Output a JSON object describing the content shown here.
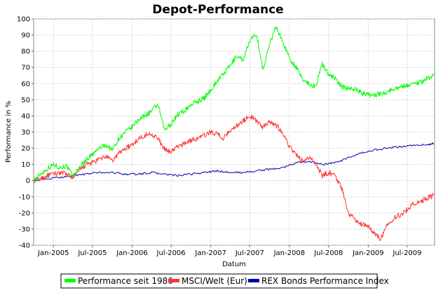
{
  "chart_data": {
    "type": "line",
    "title": "Depot-Performance",
    "xlabel": "Datum",
    "ylabel": "Performance in %",
    "ylim": [
      -40,
      100
    ],
    "yticks": [
      -40,
      -30,
      -20,
      -10,
      0,
      10,
      20,
      30,
      40,
      50,
      60,
      70,
      80,
      90,
      100
    ],
    "xlim": [
      "2004-10-01",
      "2009-11-05"
    ],
    "xticks": [
      {
        "label": "Jan-2005",
        "date": "2005-01-01"
      },
      {
        "label": "Jul-2005",
        "date": "2005-07-01"
      },
      {
        "label": "Jan-2006",
        "date": "2006-01-01"
      },
      {
        "label": "Jul-2006",
        "date": "2006-07-01"
      },
      {
        "label": "Jan-2007",
        "date": "2007-01-01"
      },
      {
        "label": "Jul-2007",
        "date": "2007-07-01"
      },
      {
        "label": "Jan-2008",
        "date": "2008-01-01"
      },
      {
        "label": "Jul-2008",
        "date": "2008-07-01"
      },
      {
        "label": "Jan-2009",
        "date": "2009-01-01"
      },
      {
        "label": "Jul-2009",
        "date": "2009-07-01"
      }
    ],
    "grid": true,
    "legend_position": "bottom",
    "series": [
      {
        "name": "Performance seit 1986",
        "color": "#00ff00",
        "points": [
          [
            "2004-10-01",
            0
          ],
          [
            "2004-11-01",
            4
          ],
          [
            "2004-12-01",
            7
          ],
          [
            "2005-01-01",
            10
          ],
          [
            "2005-02-01",
            8
          ],
          [
            "2005-03-01",
            9
          ],
          [
            "2005-04-01",
            3
          ],
          [
            "2005-05-01",
            8
          ],
          [
            "2005-06-01",
            13
          ],
          [
            "2005-07-01",
            16
          ],
          [
            "2005-08-01",
            20
          ],
          [
            "2005-09-01",
            22
          ],
          [
            "2005-10-01",
            19
          ],
          [
            "2005-11-01",
            26
          ],
          [
            "2005-12-01",
            30
          ],
          [
            "2006-01-01",
            33
          ],
          [
            "2006-02-01",
            38
          ],
          [
            "2006-03-01",
            40
          ],
          [
            "2006-04-01",
            43
          ],
          [
            "2006-05-01",
            47
          ],
          [
            "2006-06-01",
            31
          ],
          [
            "2006-07-01",
            35
          ],
          [
            "2006-08-01",
            41
          ],
          [
            "2006-09-01",
            43
          ],
          [
            "2006-10-01",
            47
          ],
          [
            "2006-11-01",
            49
          ],
          [
            "2006-12-01",
            51
          ],
          [
            "2007-01-01",
            56
          ],
          [
            "2007-02-01",
            62
          ],
          [
            "2007-03-01",
            66
          ],
          [
            "2007-04-01",
            71
          ],
          [
            "2007-05-01",
            77
          ],
          [
            "2007-06-01",
            75
          ],
          [
            "2007-07-01",
            86
          ],
          [
            "2007-08-01",
            91
          ],
          [
            "2007-09-01",
            68
          ],
          [
            "2007-10-01",
            85
          ],
          [
            "2007-11-01",
            95
          ],
          [
            "2007-12-01",
            86
          ],
          [
            "2008-01-01",
            76
          ],
          [
            "2008-02-01",
            70
          ],
          [
            "2008-03-01",
            63
          ],
          [
            "2008-04-01",
            60
          ],
          [
            "2008-05-01",
            58
          ],
          [
            "2008-06-01",
            72
          ],
          [
            "2008-07-01",
            66
          ],
          [
            "2008-08-01",
            63
          ],
          [
            "2008-09-01",
            58
          ],
          [
            "2008-10-01",
            57
          ],
          [
            "2008-11-01",
            57
          ],
          [
            "2008-12-01",
            54
          ],
          [
            "2009-01-01",
            53
          ],
          [
            "2009-02-01",
            53
          ],
          [
            "2009-03-01",
            54
          ],
          [
            "2009-04-01",
            55
          ],
          [
            "2009-05-01",
            57
          ],
          [
            "2009-06-01",
            58
          ],
          [
            "2009-07-01",
            59
          ],
          [
            "2009-08-01",
            60
          ],
          [
            "2009-09-01",
            61
          ],
          [
            "2009-10-01",
            63
          ],
          [
            "2009-11-01",
            65
          ]
        ]
      },
      {
        "name": "MSCI/Welt (Eur)",
        "color": "#ff3333",
        "points": [
          [
            "2004-10-01",
            0
          ],
          [
            "2004-11-01",
            1
          ],
          [
            "2004-12-01",
            3
          ],
          [
            "2005-01-01",
            4
          ],
          [
            "2005-02-01",
            5
          ],
          [
            "2005-03-01",
            4
          ],
          [
            "2005-04-01",
            2
          ],
          [
            "2005-05-01",
            6
          ],
          [
            "2005-06-01",
            10
          ],
          [
            "2005-07-01",
            11
          ],
          [
            "2005-08-01",
            13
          ],
          [
            "2005-09-01",
            15
          ],
          [
            "2005-10-01",
            12
          ],
          [
            "2005-11-01",
            17
          ],
          [
            "2005-12-01",
            20
          ],
          [
            "2006-01-01",
            22
          ],
          [
            "2006-02-01",
            26
          ],
          [
            "2006-03-01",
            28
          ],
          [
            "2006-04-01",
            29
          ],
          [
            "2006-05-01",
            26
          ],
          [
            "2006-06-01",
            19
          ],
          [
            "2006-07-01",
            18
          ],
          [
            "2006-08-01",
            21
          ],
          [
            "2006-09-01",
            23
          ],
          [
            "2006-10-01",
            25
          ],
          [
            "2006-11-01",
            26
          ],
          [
            "2006-12-01",
            28
          ],
          [
            "2007-01-01",
            30
          ],
          [
            "2007-02-01",
            29
          ],
          [
            "2007-03-01",
            26
          ],
          [
            "2007-04-01",
            31
          ],
          [
            "2007-05-01",
            34
          ],
          [
            "2007-06-01",
            37
          ],
          [
            "2007-07-01",
            40
          ],
          [
            "2007-08-01",
            37
          ],
          [
            "2007-09-01",
            33
          ],
          [
            "2007-10-01",
            37
          ],
          [
            "2007-11-01",
            34
          ],
          [
            "2007-12-01",
            30
          ],
          [
            "2008-01-01",
            21
          ],
          [
            "2008-02-01",
            16
          ],
          [
            "2008-03-01",
            12
          ],
          [
            "2008-04-01",
            14
          ],
          [
            "2008-05-01",
            11
          ],
          [
            "2008-06-01",
            3
          ],
          [
            "2008-07-01",
            5
          ],
          [
            "2008-08-01",
            3
          ],
          [
            "2008-09-01",
            -5
          ],
          [
            "2008-10-01",
            -20
          ],
          [
            "2008-11-01",
            -24
          ],
          [
            "2008-12-01",
            -27
          ],
          [
            "2009-01-01",
            -28
          ],
          [
            "2009-02-01",
            -33
          ],
          [
            "2009-03-01",
            -36
          ],
          [
            "2009-04-01",
            -27
          ],
          [
            "2009-05-01",
            -23
          ],
          [
            "2009-06-01",
            -21
          ],
          [
            "2009-07-01",
            -18
          ],
          [
            "2009-08-01",
            -14
          ],
          [
            "2009-09-01",
            -13
          ],
          [
            "2009-10-01",
            -11
          ],
          [
            "2009-11-01",
            -9
          ]
        ]
      },
      {
        "name": "REX Bonds Performance Index",
        "color": "#0000aa",
        "points": [
          [
            "2004-10-01",
            0
          ],
          [
            "2004-12-01",
            1
          ],
          [
            "2005-02-01",
            2
          ],
          [
            "2005-04-01",
            3
          ],
          [
            "2005-06-01",
            4
          ],
          [
            "2005-08-01",
            5
          ],
          [
            "2005-10-01",
            5
          ],
          [
            "2005-12-01",
            4
          ],
          [
            "2006-02-01",
            4
          ],
          [
            "2006-04-01",
            5
          ],
          [
            "2006-06-01",
            4
          ],
          [
            "2006-08-01",
            3
          ],
          [
            "2006-10-01",
            4
          ],
          [
            "2006-12-01",
            5
          ],
          [
            "2007-02-01",
            6
          ],
          [
            "2007-04-01",
            5
          ],
          [
            "2007-06-01",
            5
          ],
          [
            "2007-08-01",
            6
          ],
          [
            "2007-10-01",
            7
          ],
          [
            "2007-12-01",
            8
          ],
          [
            "2008-02-01",
            11
          ],
          [
            "2008-04-01",
            12
          ],
          [
            "2008-06-01",
            10
          ],
          [
            "2008-08-01",
            11
          ],
          [
            "2008-10-01",
            14
          ],
          [
            "2008-12-01",
            17
          ],
          [
            "2009-02-01",
            19
          ],
          [
            "2009-04-01",
            20
          ],
          [
            "2009-06-01",
            21
          ],
          [
            "2009-08-01",
            22
          ],
          [
            "2009-10-01",
            22
          ],
          [
            "2009-11-01",
            23
          ]
        ]
      }
    ]
  }
}
